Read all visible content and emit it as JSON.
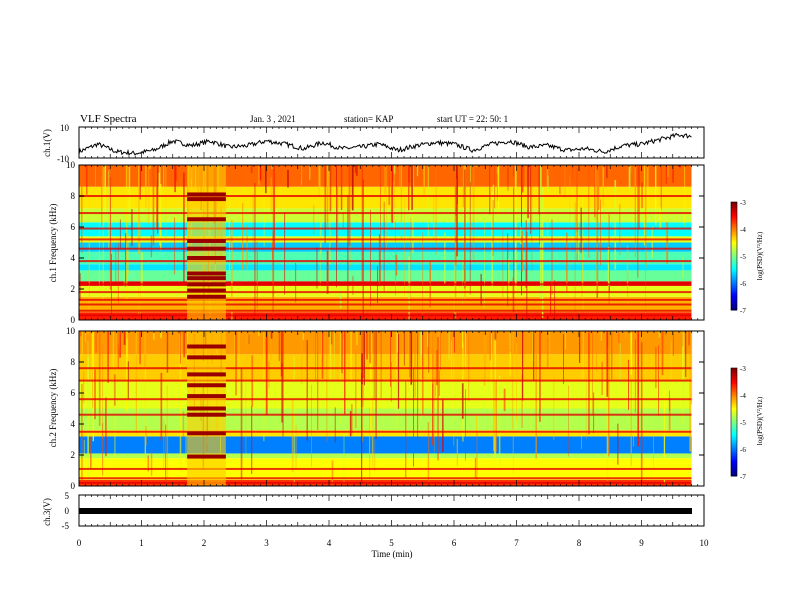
{
  "header": {
    "title": "VLF Spectra",
    "date": "Jan. 3 , 2021",
    "station": "station= KAP",
    "start": "start UT = 22: 50: 1"
  },
  "chart_data": [
    {
      "type": "line",
      "name": "ch1-waveform",
      "ylabel": "ch.1(V)",
      "ylim": [
        -10,
        10
      ],
      "y_ticks": [
        "10",
        "-10"
      ],
      "x": [
        0,
        0.3,
        0.6,
        0.9,
        1.2,
        1.5,
        1.8,
        2.1,
        2.4,
        2.7,
        3.0,
        3.3,
        3.6,
        3.9,
        4.2,
        4.5,
        4.8,
        5.1,
        5.4,
        5.7,
        6.0,
        6.3,
        6.6,
        6.9,
        7.2,
        7.5,
        7.8,
        8.1,
        8.4,
        8.7,
        9.0,
        9.3,
        9.6,
        9.8
      ],
      "y": [
        -6,
        -1,
        -6,
        -7,
        -5,
        1,
        -2,
        1,
        -3,
        -2,
        1,
        -1,
        -4,
        0,
        -4,
        -3,
        -1,
        -5,
        -2,
        0,
        -1,
        -5,
        -1,
        1,
        -3,
        -2,
        -5,
        -4,
        -6,
        -2,
        -1,
        2,
        5,
        4
      ]
    },
    {
      "type": "heatmap",
      "name": "ch1-spectrogram",
      "ylabel": "ch.1 Frequency (kHz)",
      "ylim": [
        0,
        10
      ],
      "y_ticks": [
        "0",
        "2",
        "4",
        "6",
        "8",
        "10"
      ],
      "colorbar": {
        "label": "log(PSD)(V²/Hz)",
        "range": [
          -7,
          -3
        ],
        "ticks": [
          "-3",
          "-4",
          "-5",
          "-6",
          "-7"
        ]
      },
      "background_kHz": [
        [
          0,
          0.5,
          -3.6
        ],
        [
          0.5,
          1.5,
          -4.2
        ],
        [
          1.5,
          2.2,
          -4.6
        ],
        [
          2.2,
          2.5,
          -3.4
        ],
        [
          2.5,
          3.2,
          -5.1
        ],
        [
          3.2,
          3.6,
          -5.6
        ],
        [
          3.6,
          4.4,
          -5.2
        ],
        [
          4.4,
          5.0,
          -5.7
        ],
        [
          5.0,
          5.4,
          -4.6
        ],
        [
          5.4,
          6.3,
          -5.5
        ],
        [
          6.3,
          7.2,
          -4.7
        ],
        [
          7.2,
          8.6,
          -4.4
        ],
        [
          8.6,
          10.0,
          -3.9
        ]
      ],
      "lines_kHz": [
        0.3,
        0.6,
        1.0,
        1.3,
        1.8,
        2.3,
        3.8,
        4.6,
        5.2,
        5.9,
        6.9,
        8.0
      ],
      "interference_minutes": [
        1.73,
        2.35
      ],
      "interference_tones_kHz": [
        1.5,
        1.9,
        2.3,
        2.7,
        3.0,
        4.0,
        4.6,
        5.1,
        6.5,
        7.8,
        8.1
      ]
    },
    {
      "type": "heatmap",
      "name": "ch2-spectrogram",
      "ylabel": "ch.2 Frequency (kHz)",
      "ylim": [
        0,
        10
      ],
      "y_ticks": [
        "0",
        "2",
        "4",
        "6",
        "8",
        "10"
      ],
      "colorbar": {
        "label": "log(PSD)(V²/Hz)",
        "range": [
          -7,
          -3
        ],
        "ticks": [
          "-3",
          "-4",
          "-5",
          "-6",
          "-7"
        ]
      },
      "background_kHz": [
        [
          0,
          0.4,
          -3.7
        ],
        [
          0.4,
          1.8,
          -4.5
        ],
        [
          1.8,
          2.1,
          -4.8
        ],
        [
          2.1,
          3.2,
          -6.0
        ],
        [
          3.2,
          3.6,
          -4.4
        ],
        [
          3.6,
          5.0,
          -4.8
        ],
        [
          5.0,
          6.8,
          -4.6
        ],
        [
          6.8,
          8.5,
          -4.3
        ],
        [
          8.5,
          10.0,
          -4.1
        ]
      ],
      "lines_kHz": [
        0.2,
        0.5,
        1.1,
        3.5,
        4.6,
        5.6,
        6.8,
        7.6
      ],
      "interference_minutes": [
        1.73,
        2.35
      ],
      "interference_tones_kHz": [
        1.9,
        3.4,
        4.6,
        5.0,
        5.8,
        6.5,
        7.2,
        8.3,
        9.0
      ]
    },
    {
      "type": "line",
      "name": "ch3-waveform",
      "xlabel": "Time (min)",
      "ylabel": "ch.3(V)",
      "xlim": [
        0,
        10
      ],
      "x_ticks": [
        "0",
        "1",
        "2",
        "3",
        "4",
        "5",
        "6",
        "7",
        "8",
        "9",
        "10"
      ],
      "ylim": [
        -5,
        5
      ],
      "y_ticks": [
        "5",
        "0",
        "-5"
      ],
      "x": [
        0,
        9.8
      ],
      "y": [
        0,
        0
      ]
    }
  ]
}
